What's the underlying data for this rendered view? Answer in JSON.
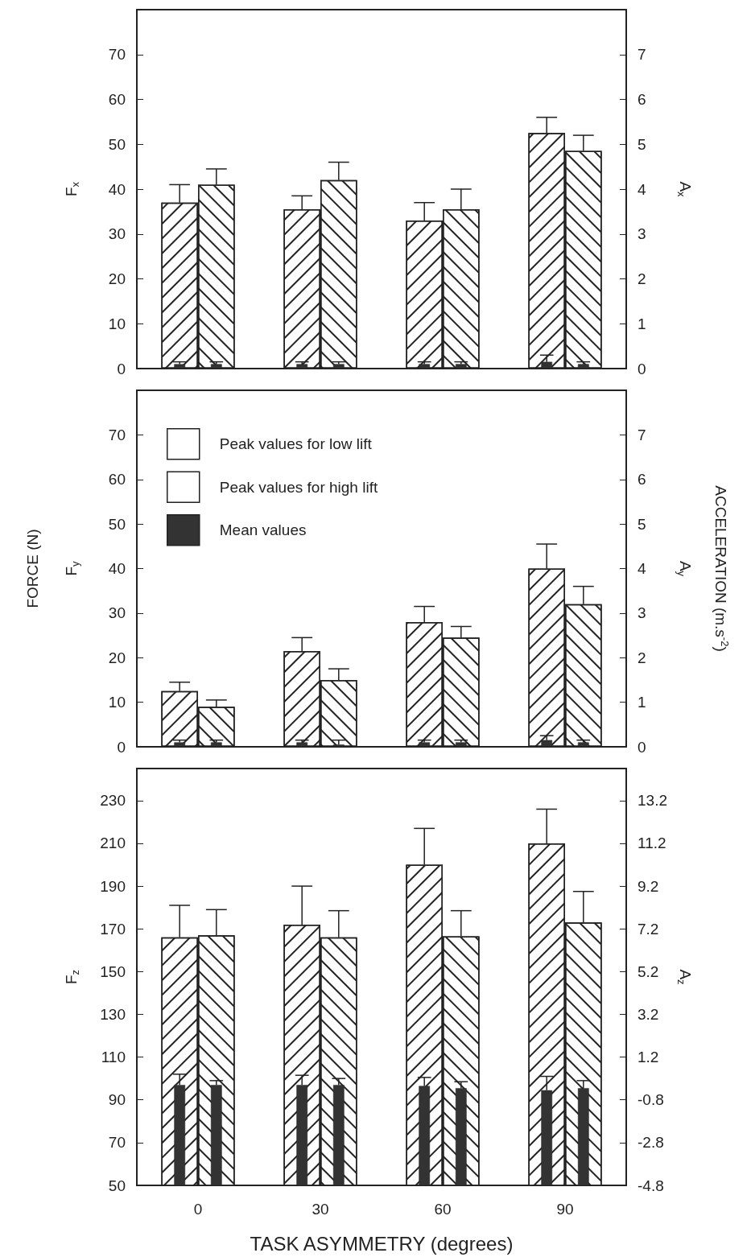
{
  "chart_data": [
    {
      "type": "bar",
      "ylabel": "F$_{x}$",
      "y2label": "A$_{x}$",
      "categories": [
        "0",
        "30",
        "60",
        "90"
      ],
      "series": [
        {
          "color": "#ffffff",
          "values": [
            37,
            35.5,
            33,
            52.5
          ],
          "errors": [
            [
              37,
              41
            ],
            [
              35.5,
              38.5
            ],
            [
              33,
              37
            ],
            [
              52.5,
              56
            ]
          ]
        },
        {
          "color": "#333333",
          "values": [
            1,
            1,
            1,
            1.5
          ],
          "errors": [
            [
              1,
              1.5
            ],
            [
              1,
              1.5
            ],
            [
              1,
              1.5
            ],
            [
              1.5,
              3
            ]
          ]
        },
        {
          "color": "#ffffff",
          "values": [
            41,
            42,
            35.5,
            48.5
          ],
          "errors": [
            [
              41,
              44.5
            ],
            [
              42,
              46
            ],
            [
              35.5,
              40
            ],
            [
              48.5,
              52
            ]
          ]
        },
        {
          "color": "#333333",
          "values": [
            1,
            1,
            1,
            1
          ],
          "errors": [
            [
              1,
              1.5
            ],
            [
              1,
              1.5
            ],
            [
              1,
              1.5
            ],
            [
              1,
              1.5
            ]
          ]
        }
      ],
      "ylim": [
        0,
        80
      ],
      "yticks": [
        0,
        10,
        20,
        30,
        40,
        50,
        60,
        70
      ],
      "y2lim": [
        0,
        8
      ],
      "y2ticks": [
        0,
        1,
        2,
        3,
        4,
        5,
        6,
        7
      ],
      "tick_labels": "y",
      "legend": false,
      "grid": false
    },
    {
      "type": "bar",
      "ylabel": "F$_{y}$",
      "y2label": "A$_{y}$",
      "annotations": [
        "FORCE (N)",
        "ACCELERATION (m.s$^{-2}$)"
      ],
      "categories": [
        "0",
        "30",
        "60",
        "90"
      ],
      "series": [
        {
          "name": "Peak values for low lift",
          "color": "#ffffff",
          "values": [
            12.5,
            21.5,
            28,
            40
          ],
          "errors": [
            [
              12.5,
              14.5
            ],
            [
              21.5,
              24.5
            ],
            [
              28,
              31.5
            ],
            [
              40,
              45.5
            ]
          ]
        },
        {
          "name": "Mean values",
          "color": "#333333",
          "values": [
            1,
            1,
            1,
            1.5
          ],
          "errors": [
            [
              1,
              1.5
            ],
            [
              1,
              1.5
            ],
            [
              1,
              1.5
            ],
            [
              1.5,
              2.5
            ]
          ]
        },
        {
          "name": "Peak values for high lift",
          "color": "#ffffff",
          "values": [
            9,
            15,
            24.5,
            32
          ],
          "errors": [
            [
              9,
              10.5
            ],
            [
              15,
              17.5
            ],
            [
              24.5,
              27
            ],
            [
              32,
              36
            ]
          ]
        },
        {
          "color": "#333333",
          "values": [
            1,
            0.5,
            1,
            1
          ],
          "errors": [
            [
              1,
              1.5
            ],
            [
              0.5,
              1.5
            ],
            [
              1,
              1.5
            ],
            [
              1,
              1.5
            ]
          ]
        }
      ],
      "ylim": [
        0,
        80
      ],
      "yticks": [
        0,
        10,
        20,
        30,
        40,
        50,
        60,
        70
      ],
      "y2lim": [
        0,
        8
      ],
      "y2ticks": [
        0,
        1,
        2,
        3,
        4,
        5,
        6,
        7
      ],
      "tick_labels": "y",
      "legend": "top left",
      "grid": false
    },
    {
      "type": "bar",
      "ylabel": "F$_{z}$",
      "y2label": "A$_{z}$",
      "xlabel": "TASK ASYMMETRY (degrees)",
      "categories": [
        "0",
        "30",
        "60",
        "90"
      ],
      "series": [
        {
          "color": "#ffffff",
          "values": [
            166,
            172,
            200,
            210
          ],
          "errors": [
            [
              166,
              181
            ],
            [
              172,
              190
            ],
            [
              200,
              217
            ],
            [
              210,
              226
            ]
          ]
        },
        {
          "color": "#333333",
          "values": [
            97,
            97,
            96.5,
            94.5
          ],
          "errors": [
            [
              97,
              102
            ],
            [
              97,
              101.5
            ],
            [
              96.5,
              100.5
            ],
            [
              94.5,
              101
            ]
          ]
        },
        {
          "color": "#ffffff",
          "values": [
            167,
            166,
            166.5,
            173
          ],
          "errors": [
            [
              167,
              179
            ],
            [
              166,
              178.5
            ],
            [
              166.5,
              178.5
            ],
            [
              173,
              187.5
            ]
          ]
        },
        {
          "color": "#333333",
          "values": [
            97,
            97,
            95.5,
            95.5
          ],
          "errors": [
            [
              97,
              99
            ],
            [
              97,
              100
            ],
            [
              95.5,
              98.5
            ],
            [
              95.5,
              99
            ]
          ]
        }
      ],
      "ylim": [
        50,
        245
      ],
      "yticks": [
        50,
        70,
        90,
        110,
        130,
        150,
        170,
        190,
        210,
        230
      ],
      "y2lim": [
        -4.8,
        14.7
      ],
      "y2ticks": [
        -4.8,
        -2.8,
        -0.8,
        1.2,
        3.2,
        5.2,
        7.2,
        9.2,
        11.2,
        13.2
      ],
      "legend": false,
      "grid": false
    }
  ]
}
